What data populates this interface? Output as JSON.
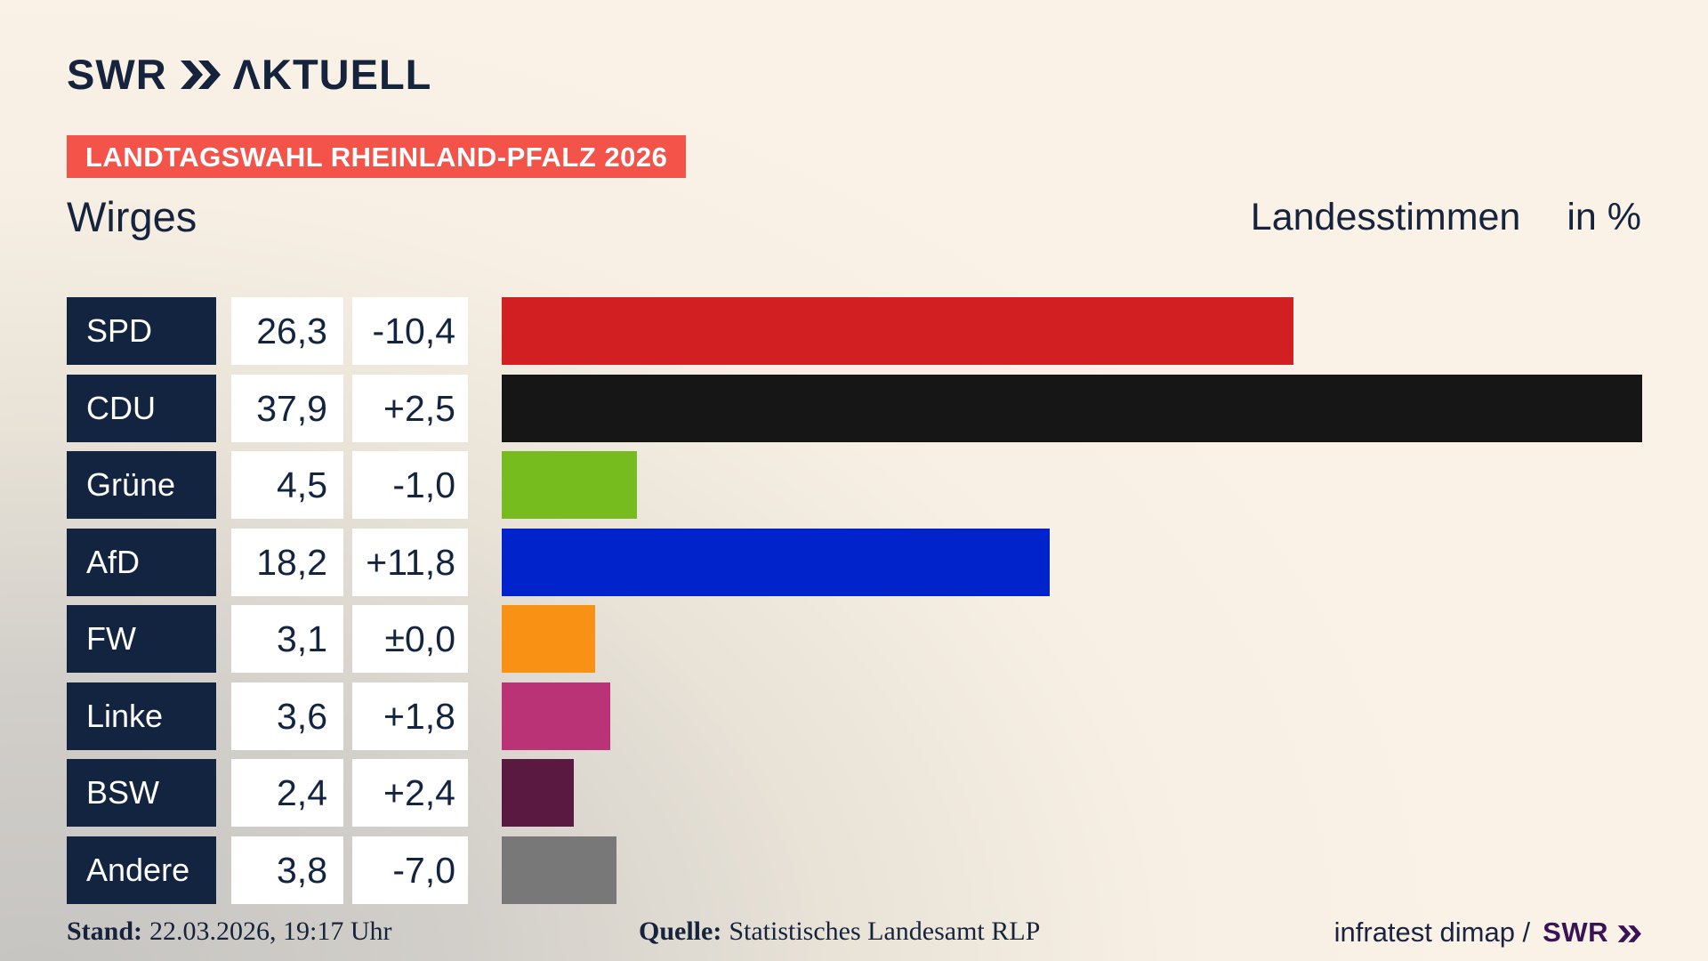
{
  "header": {
    "logo_brand": "SWR",
    "logo_suffix": "ΛKTUELL",
    "banner": "LANDTAGSWAHL RHEINLAND-PFALZ 2026",
    "title": "Wirges",
    "right_title": "Landesstimmen",
    "unit_label": "in %"
  },
  "chart_data": {
    "type": "bar",
    "orientation": "horizontal",
    "title": "Wirges — Landesstimmen in %",
    "unit": "%",
    "categories": [
      "SPD",
      "CDU",
      "Grüne",
      "AfD",
      "FW",
      "Linke",
      "BSW",
      "Andere"
    ],
    "values": [
      26.3,
      37.9,
      4.5,
      18.2,
      3.1,
      3.6,
      2.4,
      3.8
    ],
    "value_labels": [
      "26,3",
      "37,9",
      "4,5",
      "18,2",
      "3,1",
      "3,6",
      "2,4",
      "3,8"
    ],
    "diff_labels": [
      "-10,4",
      "+2,5",
      "-1,0",
      "+11,8",
      "±0,0",
      "+1,8",
      "+2,4",
      "-7,0"
    ],
    "bar_colors": [
      "#d21f22",
      "#161616",
      "#77bc1f",
      "#0023cb",
      "#f99114",
      "#ba3377",
      "#5a1940",
      "#787878"
    ],
    "xlim": [
      0,
      37.9
    ],
    "grid": false,
    "legend": false
  },
  "footer": {
    "stand_label": "Stand:",
    "stand_value": "22.03.2026, 19:17 Uhr",
    "quelle_label": "Quelle:",
    "quelle_value": "Statistisches Landesamt RLP",
    "credit_text": "infratest dimap /",
    "credit_brand": "SWR"
  },
  "colors": {
    "navy": "#15233d",
    "cell_navy": "#132440",
    "banner_red": "#f4534a",
    "brand_purple": "#3a1356",
    "background_cream": "#f8f0e4",
    "background_gray": "#c8c6c2"
  }
}
